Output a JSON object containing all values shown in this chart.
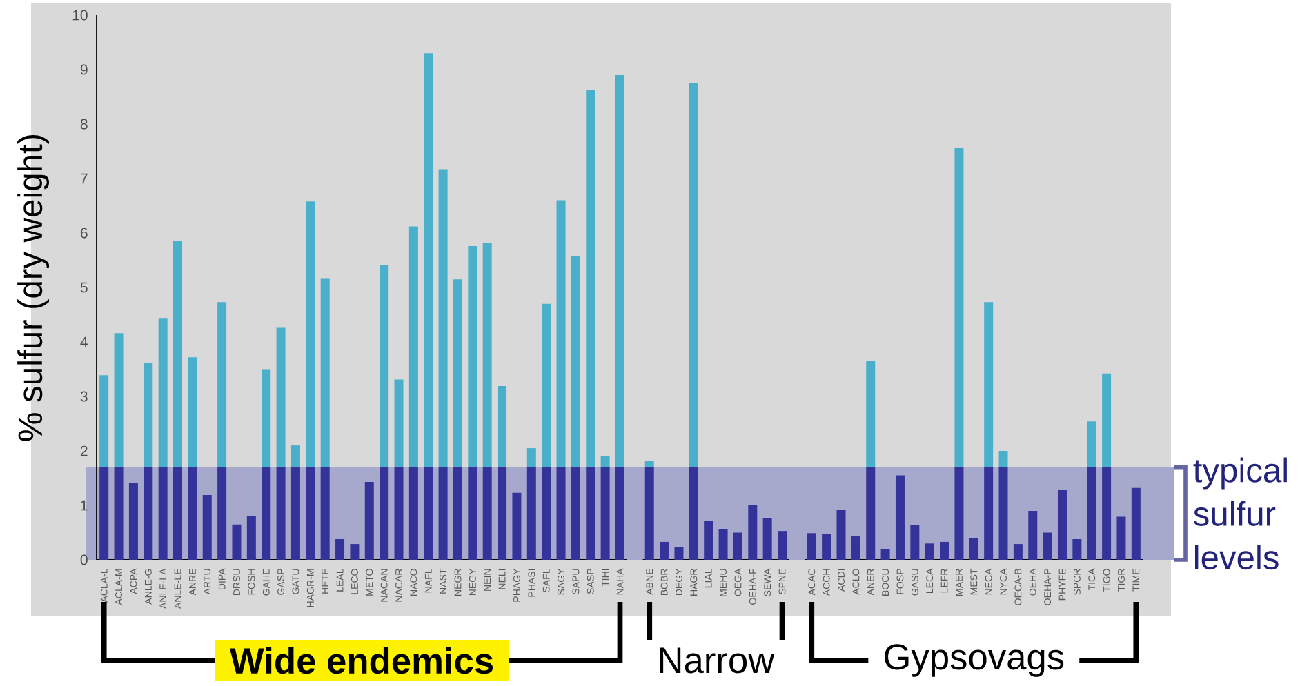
{
  "chart_data": {
    "type": "bar",
    "stacked": true,
    "ylabel": "% sulfur (dry weight)",
    "categories": [
      "ACLA-L",
      "ACLA-M",
      "ACPA",
      "ANLE-G",
      "ANLE-LA",
      "ANLE-LE",
      "ANRE",
      "ARTU",
      "DIPA",
      "DRSU",
      "FOSH",
      "GAHE",
      "GASP",
      "GATU",
      "HAGR-M",
      "HETE",
      "LEAL",
      "LECO",
      "METO",
      "NACAN",
      "NACAR",
      "NACO",
      "NAFL",
      "NAST",
      "NEGR",
      "NEGY",
      "NEIN",
      "NELI",
      "PHAGY",
      "PHASI",
      "SAFL",
      "SAGY",
      "SAPU",
      "SASP",
      "TIHI",
      "NAHA",
      null,
      "ABNE",
      "BOBR",
      "DEGY",
      "HAGR",
      "LIAL",
      "MEHU",
      "OEGA",
      "OEHA-F",
      "SEWA",
      "SPNE",
      null,
      "ACAC",
      "ACCH",
      "ACDI",
      "ACLO",
      "ANER",
      "BOCU",
      "FOSP",
      "GASU",
      "LECA",
      "LEFR",
      "MAER",
      "MEST",
      "NECA",
      "NYCA",
      "OECA-B",
      "OEHA",
      "OEHA-P",
      "PHYFE",
      "SPCR",
      "TICA",
      "TIGO",
      "TIGR",
      "TIME"
    ],
    "series": [
      {
        "color": "#333399",
        "values": [
          1.7,
          1.7,
          1.41,
          1.7,
          1.7,
          1.7,
          1.7,
          1.19,
          1.7,
          0.65,
          0.8,
          1.7,
          1.7,
          1.7,
          1.7,
          1.7,
          0.38,
          0.29,
          1.43,
          1.7,
          1.7,
          1.7,
          1.7,
          1.7,
          1.7,
          1.7,
          1.7,
          1.7,
          1.23,
          1.7,
          1.7,
          1.7,
          1.7,
          1.7,
          1.7,
          1.7,
          null,
          1.7,
          0.33,
          0.23,
          1.7,
          0.71,
          0.56,
          0.5,
          1.0,
          0.76,
          0.53,
          null,
          0.49,
          0.47,
          0.91,
          0.43,
          1.7,
          0.2,
          1.55,
          0.64,
          0.3,
          0.33,
          1.7,
          0.4,
          1.7,
          1.7,
          0.29,
          0.9,
          0.5,
          1.28,
          0.38,
          1.7,
          1.7,
          0.79,
          1.32
        ]
      },
      {
        "color": "#4aafca",
        "values": [
          1.69,
          2.46,
          null,
          1.92,
          2.74,
          4.15,
          2.02,
          null,
          3.03,
          null,
          null,
          1.8,
          2.56,
          0.4,
          4.88,
          3.47,
          null,
          null,
          null,
          3.71,
          1.61,
          4.42,
          7.6,
          5.47,
          3.45,
          4.06,
          4.12,
          1.49,
          null,
          0.35,
          3.0,
          4.9,
          3.88,
          6.93,
          0.2,
          7.2,
          null,
          0.12,
          null,
          null,
          7.05,
          null,
          null,
          null,
          null,
          null,
          null,
          null,
          null,
          null,
          null,
          null,
          1.95,
          null,
          null,
          null,
          null,
          null,
          5.87,
          null,
          3.03,
          0.3,
          null,
          null,
          null,
          null,
          null,
          0.84,
          1.72,
          null,
          null
        ]
      }
    ],
    "ylim": [
      0,
      10
    ],
    "yticks": [
      0,
      1,
      2,
      3,
      4,
      5,
      6,
      7,
      8,
      9,
      10
    ],
    "bands": [
      {
        "axis": "y",
        "from": 0,
        "to": 1.7,
        "label": "typical sulfur levels",
        "color": "#a6a8cc"
      }
    ],
    "annotations": [
      "Wide endemics",
      "Narrow",
      "Gypsovags"
    ]
  }
}
